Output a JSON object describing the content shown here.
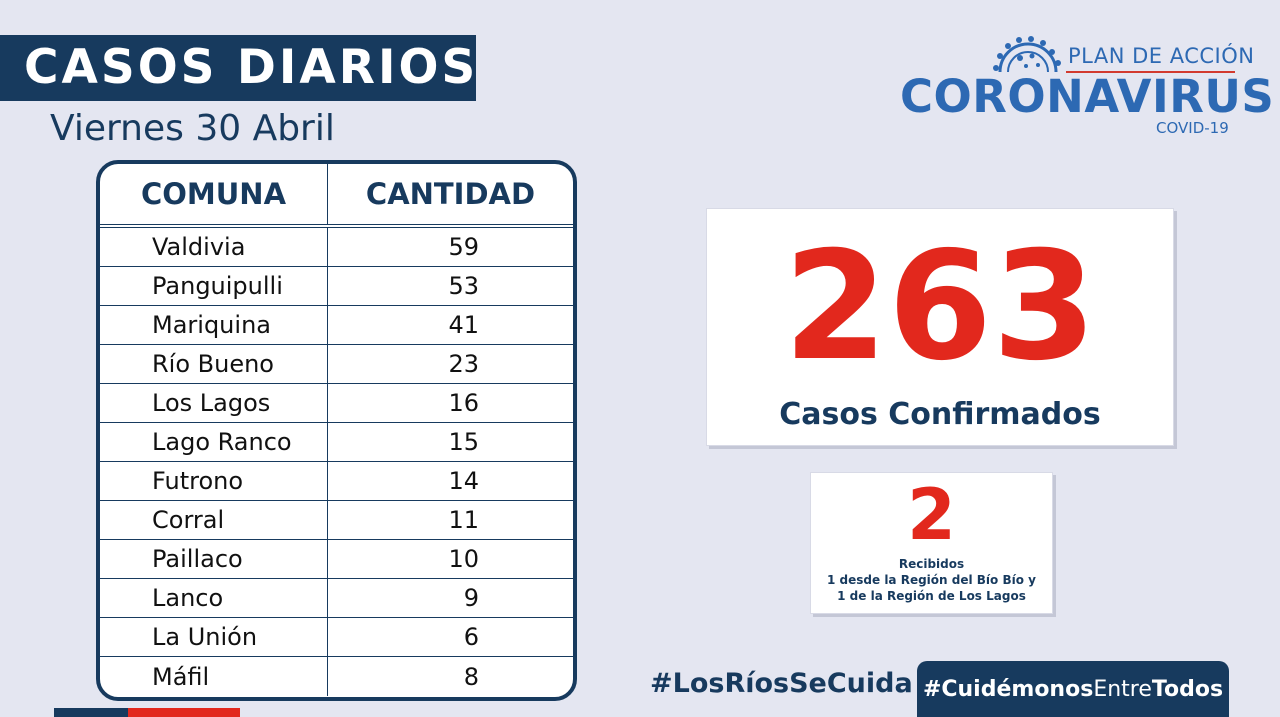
{
  "header": {
    "title": "CASOS DIARIOS",
    "date": "Viernes 30  Abril"
  },
  "logo": {
    "plan": "PLAN DE ACCIÓN",
    "name": "CORONAVIRUS",
    "sub": "COVID-19",
    "icon": "virus-icon"
  },
  "table": {
    "headers": [
      "COMUNA",
      "CANTIDAD"
    ],
    "rows": [
      {
        "comuna": "Valdivia",
        "cantidad": "59"
      },
      {
        "comuna": "Panguipulli",
        "cantidad": "53"
      },
      {
        "comuna": "Mariquina",
        "cantidad": "41"
      },
      {
        "comuna": "Río Bueno",
        "cantidad": "23"
      },
      {
        "comuna": "Los Lagos",
        "cantidad": "16"
      },
      {
        "comuna": "Lago Ranco",
        "cantidad": "15"
      },
      {
        "comuna": "Futrono",
        "cantidad": "14"
      },
      {
        "comuna": "Corral",
        "cantidad": "11"
      },
      {
        "comuna": "Paillaco",
        "cantidad": "10"
      },
      {
        "comuna": "Lanco",
        "cantidad": "9"
      },
      {
        "comuna": "La Unión",
        "cantidad": "6"
      },
      {
        "comuna": "Máfil",
        "cantidad": "8"
      }
    ]
  },
  "confirmed": {
    "value": "263",
    "label": "Casos Confirmados"
  },
  "received": {
    "value": "2",
    "line1": "Recibidos",
    "line2": "1 desde la Región del Bío Bío y",
    "line3": "1 de la Región de Los Lagos"
  },
  "hashtags": {
    "first": "#LosRíosSeCuida",
    "second_a": "#Cuidémonos",
    "second_b": "Entre",
    "second_c": "Todos"
  },
  "colors": {
    "navy": "#173a5e",
    "red": "#e2281d",
    "blue": "#2d69b3",
    "background": "#e4e6f1"
  }
}
